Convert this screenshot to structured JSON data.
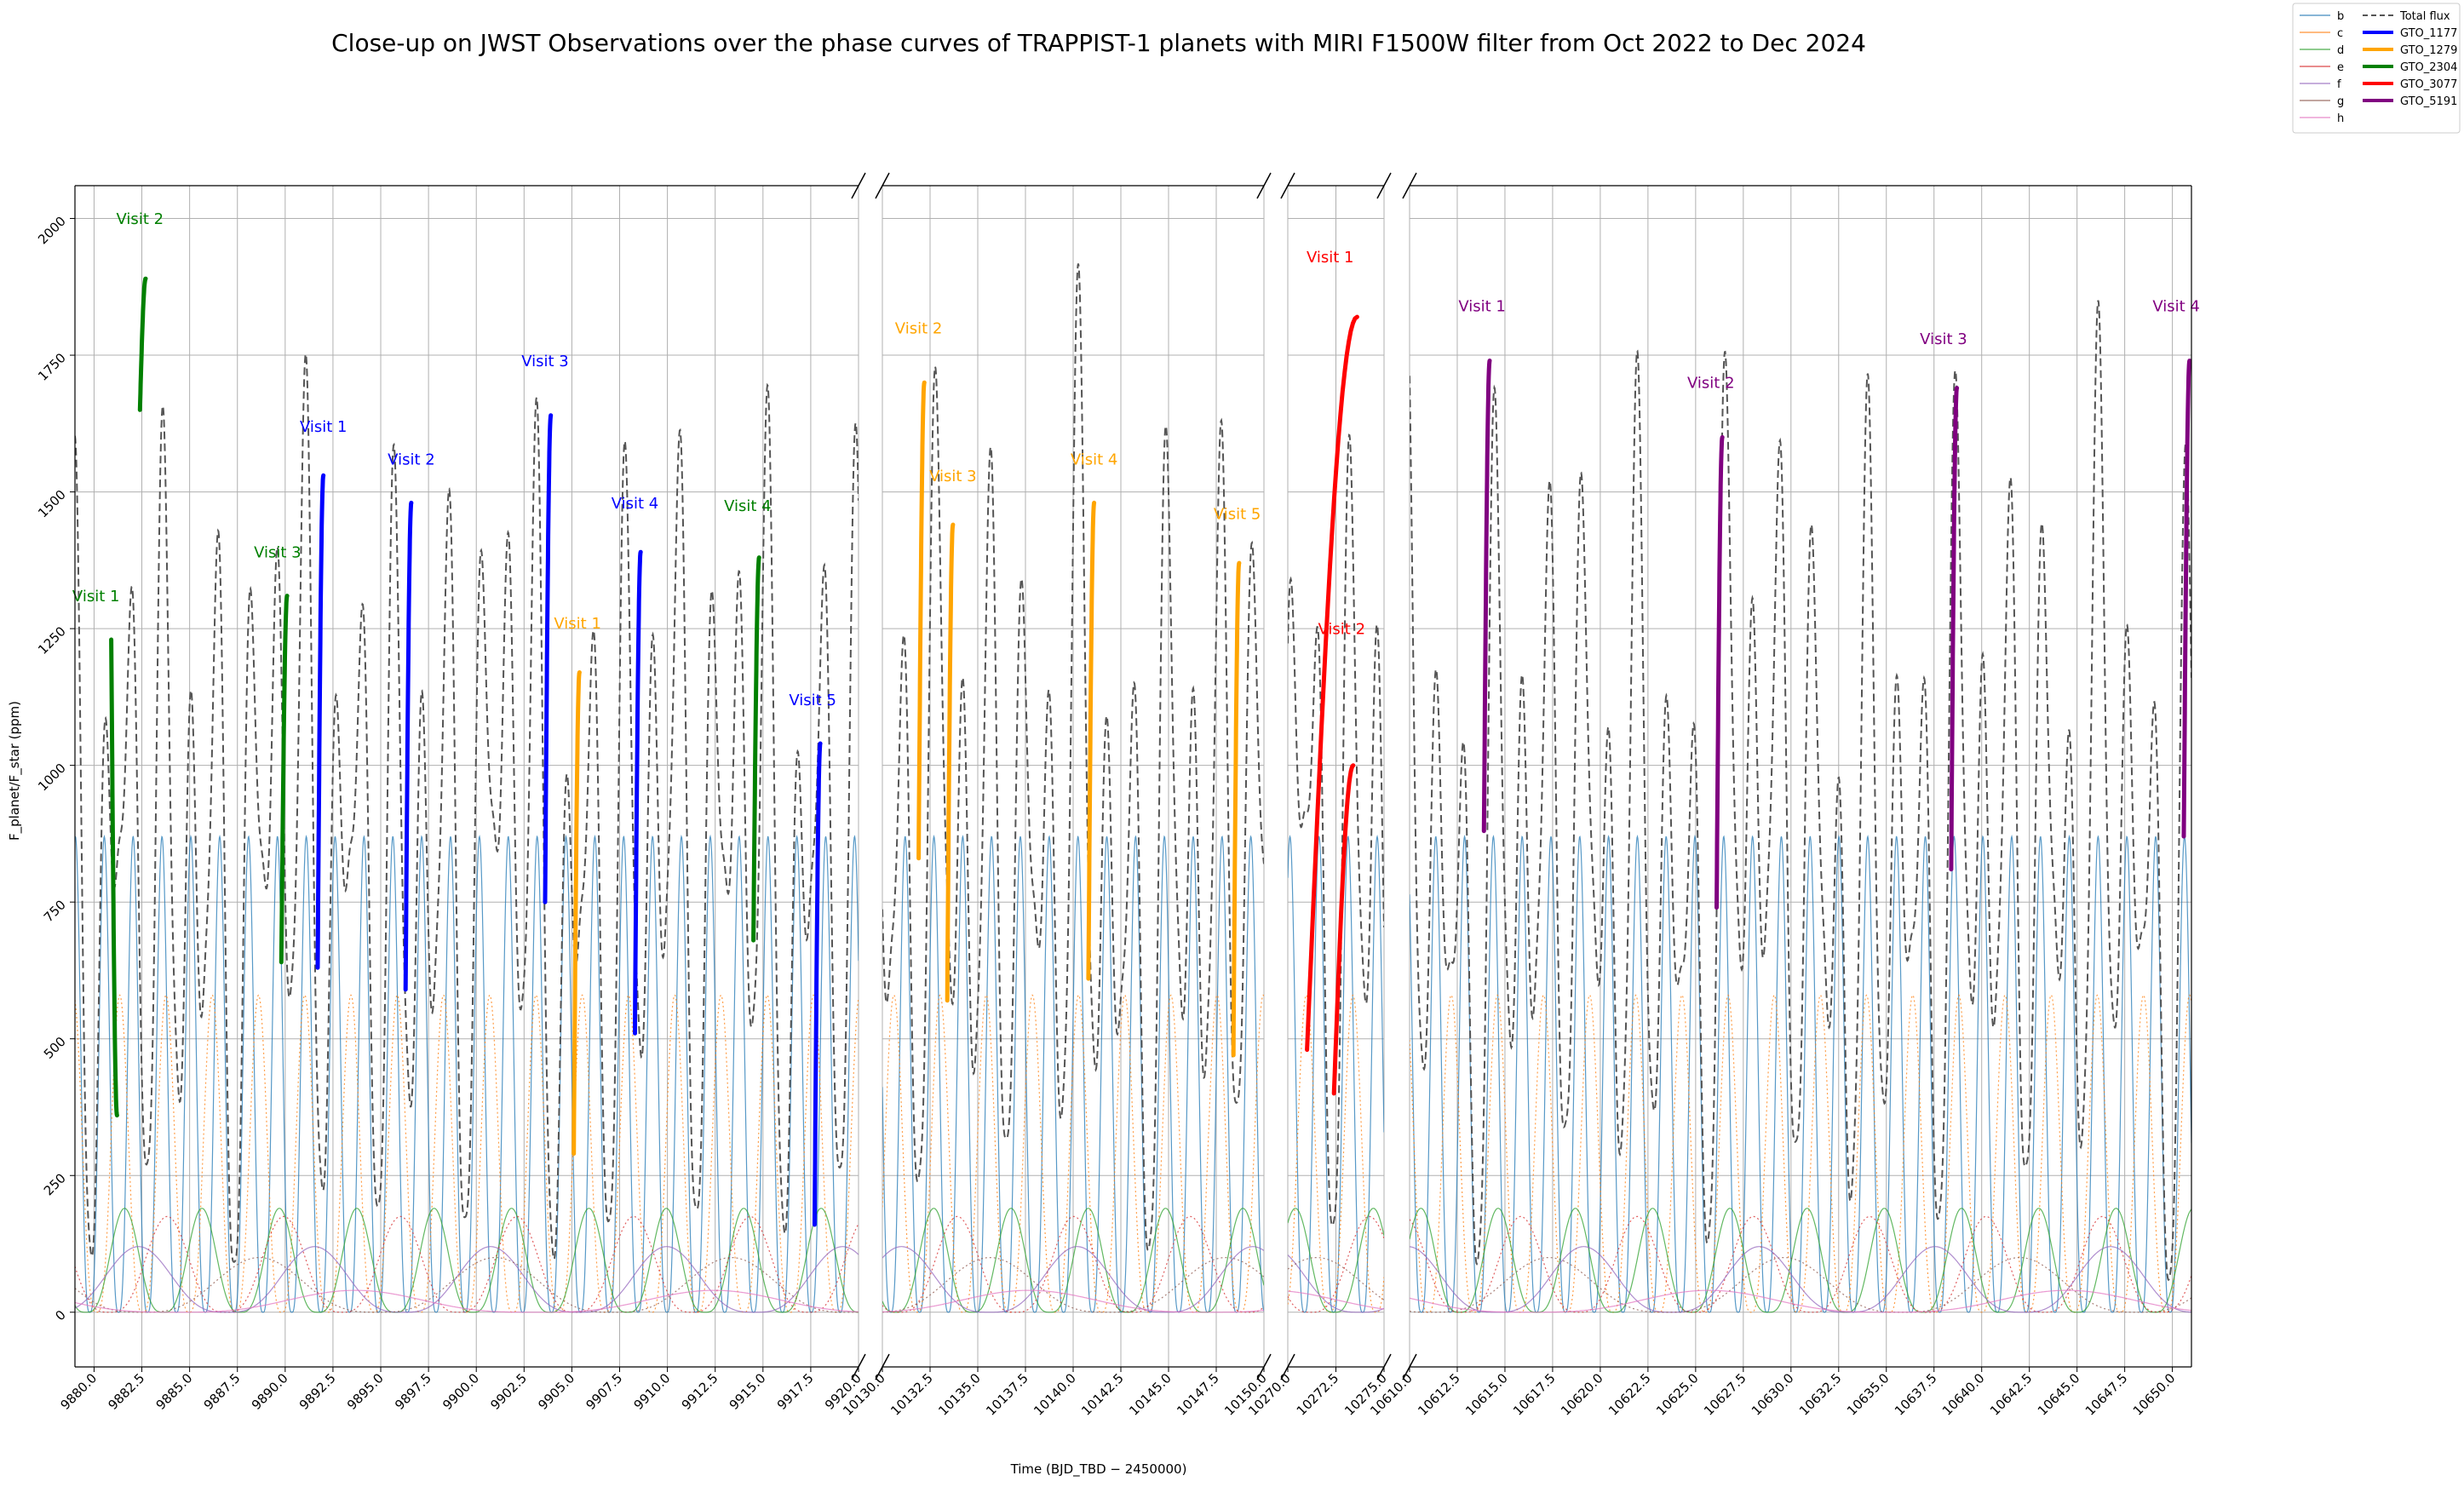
{
  "chart_data": {
    "type": "line",
    "title": "Close-up on JWST Observations over the phase curves of TRAPPIST-1 planets with MIRI F1500W filter from Oct 2022 to Dec 2024",
    "xlabel": "Time (BJD_TBD − 2450000)",
    "ylabel": "F_planet/F_star (ppm)",
    "ylim": [
      -100,
      2060
    ],
    "yticks": [
      0,
      250,
      500,
      750,
      1000,
      1250,
      1500,
      1750,
      2000
    ],
    "grid": true,
    "legend_position": "top-right outside",
    "legend": {
      "planets": [
        {
          "name": "b",
          "color": "#1f77b4"
        },
        {
          "name": "c",
          "color": "#ff7f0e"
        },
        {
          "name": "d",
          "color": "#2ca02c"
        },
        {
          "name": "e",
          "color": "#d62728"
        },
        {
          "name": "f",
          "color": "#9467bd"
        },
        {
          "name": "g",
          "color": "#8c564b"
        },
        {
          "name": "h",
          "color": "#e377c2"
        }
      ],
      "programs": [
        {
          "name": "Total flux",
          "color": "#555555",
          "style": "dashed"
        },
        {
          "name": "GTO_1177",
          "color": "#0000ff"
        },
        {
          "name": "GTO_1279",
          "color": "#ffa500"
        },
        {
          "name": "GTO_2304",
          "color": "#008000"
        },
        {
          "name": "GTO_3077",
          "color": "#ff0000"
        },
        {
          "name": "GTO_5191",
          "color": "#800080"
        }
      ]
    },
    "panels": [
      {
        "xlim": [
          9879,
          9920
        ],
        "xticks": [
          "9880.0",
          "9882.5",
          "9885.0",
          "9887.5",
          "9890.0",
          "9892.5",
          "9895.0",
          "9897.5",
          "9900.0",
          "9902.5",
          "9905.0",
          "9907.5",
          "9910.0",
          "9912.5",
          "9915.0",
          "9917.5",
          "9920.0"
        ]
      },
      {
        "xlim": [
          10130,
          10150
        ],
        "xticks": [
          "10130.0",
          "10132.5",
          "10135.0",
          "10137.5",
          "10140.0",
          "10142.5",
          "10145.0",
          "10147.5",
          "10150.0"
        ]
      },
      {
        "xlim": [
          10270,
          10275
        ],
        "xticks": [
          "10270.0",
          "10272.5",
          "10275.0"
        ]
      },
      {
        "xlim": [
          10610,
          10651
        ],
        "xticks": [
          "10610.0",
          "10612.5",
          "10615.0",
          "10617.5",
          "10620.0",
          "10622.5",
          "10625.0",
          "10627.5",
          "10630.0",
          "10632.5",
          "10635.0",
          "10637.5",
          "10640.0",
          "10642.5",
          "10645.0",
          "10647.5",
          "10650.0"
        ]
      }
    ],
    "visits": [
      {
        "program": "GTO_2304",
        "label": "Visit 1",
        "panel": 0,
        "t0": 9880.9,
        "t1": 9881.2,
        "y0": 1230,
        "y1": 360,
        "label_x": 9880.1,
        "label_y": 1300
      },
      {
        "program": "GTO_2304",
        "label": "Visit 2",
        "panel": 0,
        "t0": 9882.4,
        "t1": 9882.7,
        "y0": 1650,
        "y1": 1890,
        "label_x": 9882.4,
        "label_y": 1990
      },
      {
        "program": "GTO_2304",
        "label": "Visit 3",
        "panel": 0,
        "t0": 9889.8,
        "t1": 9890.1,
        "y0": 640,
        "y1": 1310,
        "label_x": 9889.6,
        "label_y": 1380
      },
      {
        "program": "GTO_2304",
        "label": "Visit 4",
        "panel": 0,
        "t0": 9914.5,
        "t1": 9914.8,
        "y0": 680,
        "y1": 1380,
        "label_x": 9914.2,
        "label_y": 1465
      },
      {
        "program": "GTO_1177",
        "label": "Visit 1",
        "panel": 0,
        "t0": 9891.7,
        "t1": 9892.0,
        "y0": 630,
        "y1": 1530,
        "label_x": 9892.0,
        "label_y": 1610
      },
      {
        "program": "GTO_1177",
        "label": "Visit 2",
        "panel": 0,
        "t0": 9896.3,
        "t1": 9896.6,
        "y0": 590,
        "y1": 1480,
        "label_x": 9896.6,
        "label_y": 1550
      },
      {
        "program": "GTO_1177",
        "label": "Visit 3",
        "panel": 0,
        "t0": 9903.6,
        "t1": 9903.9,
        "y0": 750,
        "y1": 1640,
        "label_x": 9903.6,
        "label_y": 1730
      },
      {
        "program": "GTO_1177",
        "label": "Visit 4",
        "panel": 0,
        "t0": 9908.3,
        "t1": 9908.6,
        "y0": 510,
        "y1": 1390,
        "label_x": 9908.3,
        "label_y": 1470
      },
      {
        "program": "GTO_1177",
        "label": "Visit 5",
        "panel": 0,
        "t0": 9917.7,
        "t1": 9918.0,
        "y0": 160,
        "y1": 1040,
        "label_x": 9917.6,
        "label_y": 1110
      },
      {
        "program": "GTO_1279",
        "label": "Visit 1",
        "panel": 0,
        "t0": 9905.1,
        "t1": 9905.4,
        "y0": 290,
        "y1": 1170,
        "label_x": 9905.3,
        "label_y": 1250
      },
      {
        "program": "GTO_1279",
        "label": "Visit 2",
        "panel": 1,
        "t0": 10131.9,
        "t1": 10132.2,
        "y0": 830,
        "y1": 1700,
        "label_x": 10131.9,
        "label_y": 1790
      },
      {
        "program": "GTO_1279",
        "label": "Visit 3",
        "panel": 1,
        "t0": 10133.4,
        "t1": 10133.7,
        "y0": 570,
        "y1": 1440,
        "label_x": 10133.7,
        "label_y": 1520
      },
      {
        "program": "GTO_1279",
        "label": "Visit 4",
        "panel": 1,
        "t0": 10140.8,
        "t1": 10141.1,
        "y0": 610,
        "y1": 1480,
        "label_x": 10141.1,
        "label_y": 1550
      },
      {
        "program": "GTO_1279",
        "label": "Visit 5",
        "panel": 1,
        "t0": 10148.4,
        "t1": 10148.7,
        "y0": 470,
        "y1": 1370,
        "label_x": 10148.6,
        "label_y": 1450
      },
      {
        "program": "GTO_3077",
        "label": "Visit 1",
        "panel": 2,
        "t0": 10271.0,
        "t1": 10273.6,
        "y0": 480,
        "y1": 1820,
        "label_x": 10272.2,
        "label_y": 1920
      },
      {
        "program": "GTO_3077",
        "label": "Visit 2",
        "panel": 2,
        "t0": 10272.4,
        "t1": 10273.4,
        "y0": 400,
        "y1": 1000,
        "label_x": 10272.8,
        "label_y": 1240
      },
      {
        "program": "GTO_5191",
        "label": "Visit 1",
        "panel": 3,
        "t0": 10613.9,
        "t1": 10614.2,
        "y0": 880,
        "y1": 1740,
        "label_x": 10613.8,
        "label_y": 1830
      },
      {
        "program": "GTO_5191",
        "label": "Visit 2",
        "panel": 3,
        "t0": 10626.1,
        "t1": 10626.4,
        "y0": 740,
        "y1": 1600,
        "label_x": 10625.8,
        "label_y": 1690
      },
      {
        "program": "GTO_5191",
        "label": "Visit 3",
        "panel": 3,
        "t0": 10638.4,
        "t1": 10638.7,
        "y0": 810,
        "y1": 1690,
        "label_x": 10638.0,
        "label_y": 1770
      },
      {
        "program": "GTO_5191",
        "label": "Visit 4",
        "panel": 3,
        "t0": 10650.6,
        "t1": 10650.9,
        "y0": 870,
        "y1": 1740,
        "label_x": 10650.2,
        "label_y": 1830
      }
    ],
    "planet_curves": [
      {
        "name": "b",
        "period": 1.51,
        "amp": 870,
        "phase": 0.1
      },
      {
        "name": "c",
        "period": 2.42,
        "amp": 580,
        "phase": 0.3
      },
      {
        "name": "d",
        "period": 4.05,
        "amp": 190,
        "phase": 0.6
      },
      {
        "name": "e",
        "period": 6.1,
        "amp": 175,
        "phase": 0.2
      },
      {
        "name": "f",
        "period": 9.21,
        "amp": 120,
        "phase": 0.5
      },
      {
        "name": "g",
        "period": 12.35,
        "amp": 100,
        "phase": 0.8
      },
      {
        "name": "h",
        "period": 18.77,
        "amp": 40,
        "phase": 0.4
      }
    ]
  }
}
